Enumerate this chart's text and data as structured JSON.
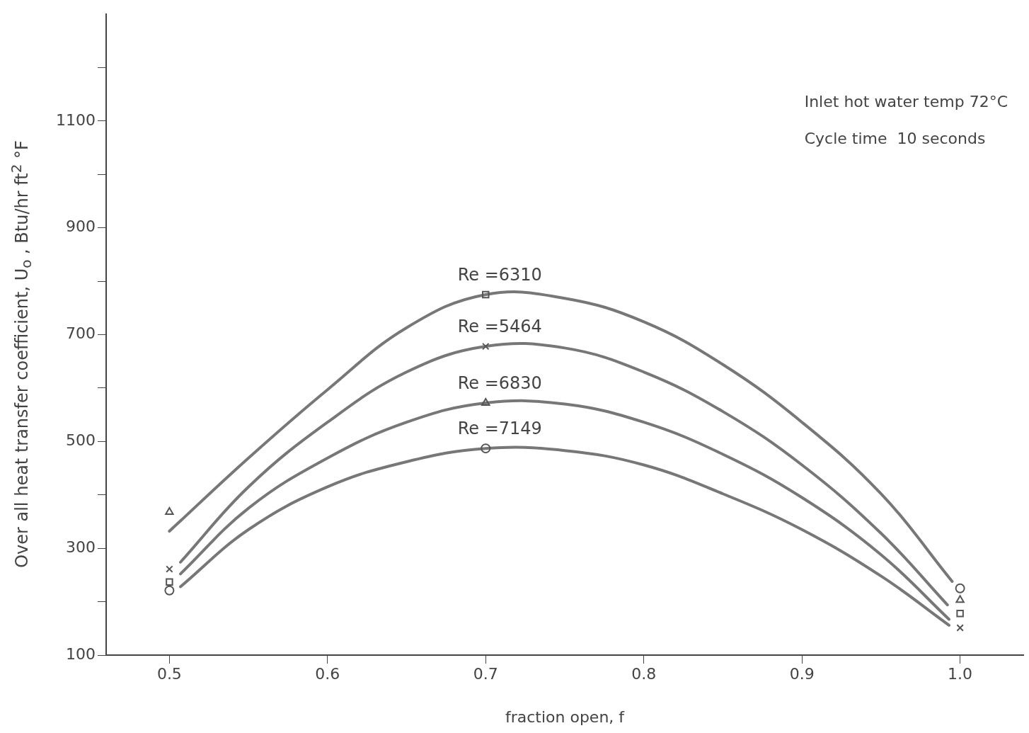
{
  "chart_data": {
    "type": "line",
    "xlabel": "fraction open, f",
    "ylabel": "Over all heat transfer coefficient, U$_{o}$ , Btu/hr ft$^{2}$ °F",
    "annotations": [
      "Inlet hot water temp 72°C",
      "Cycle time  10 seconds"
    ],
    "xlim": [
      0.46,
      1.04
    ],
    "xticks": [
      0.5,
      0.6,
      0.7,
      0.8,
      0.9,
      {
        "value": 1,
        "label": "1.0"
      }
    ],
    "ylim": [
      100,
      1300
    ],
    "yticks": [
      100,
      {
        "value": 200,
        "label": null
      },
      300,
      {
        "value": 400,
        "label": null
      },
      500,
      {
        "value": 600,
        "label": null
      },
      700,
      {
        "value": 800,
        "label": null
      },
      900,
      {
        "value": 1000,
        "label": null
      },
      1100,
      {
        "value": 1200,
        "label": null
      }
    ],
    "series": [
      {
        "type": "scatter",
        "marker": "square",
        "color": "#555555",
        "x": [
          0.5,
          0.7,
          1.0
        ],
        "values": [
          237,
          775,
          178
        ]
      },
      {
        "type": "scatter",
        "marker": "cross",
        "color": "#555555",
        "x": [
          0.5,
          0.7,
          1.0
        ],
        "values": [
          261,
          678,
          151
        ]
      },
      {
        "type": "scatter",
        "marker": "triangle",
        "color": "#555555",
        "x": [
          0.5,
          0.7,
          1.0
        ],
        "values": [
          368,
          572,
          203
        ]
      },
      {
        "type": "scatter",
        "marker": "circle",
        "color": "#555555",
        "x": [
          0.5,
          0.7,
          1.0
        ],
        "values": [
          221,
          487,
          225
        ]
      },
      {
        "name": "Re =6310",
        "color": "#777777",
        "x": [
          0.5,
          0.55,
          0.6,
          0.65,
          0.7,
          0.75,
          0.8,
          0.85,
          0.9,
          0.95,
          0.995
        ],
        "values": [
          332,
          469,
          597,
          713,
          775,
          768,
          724,
          644,
          536,
          402,
          238
        ]
      },
      {
        "name": "Re =5464",
        "color": "#777777",
        "x": [
          0.507,
          0.55,
          0.6,
          0.65,
          0.7,
          0.75,
          0.8,
          0.85,
          0.9,
          0.95,
          0.992
        ],
        "values": [
          274,
          415,
          536,
          630,
          678,
          675,
          630,
          556,
          456,
          328,
          194
        ]
      },
      {
        "name": "Re =6830",
        "color": "#777777",
        "x": [
          0.507,
          0.55,
          0.6,
          0.65,
          0.7,
          0.75,
          0.8,
          0.85,
          0.9,
          0.95,
          0.993
        ],
        "values": [
          252,
          375,
          469,
          536,
          572,
          570,
          536,
          476,
          395,
          288,
          167
        ]
      },
      {
        "name": "Re =7149",
        "color": "#777777",
        "x": [
          0.507,
          0.55,
          0.6,
          0.65,
          0.7,
          0.75,
          0.8,
          0.85,
          0.9,
          0.95,
          0.993
        ],
        "values": [
          228,
          335,
          415,
          462,
          487,
          483,
          456,
          402,
          335,
          248,
          156
        ]
      }
    ]
  }
}
